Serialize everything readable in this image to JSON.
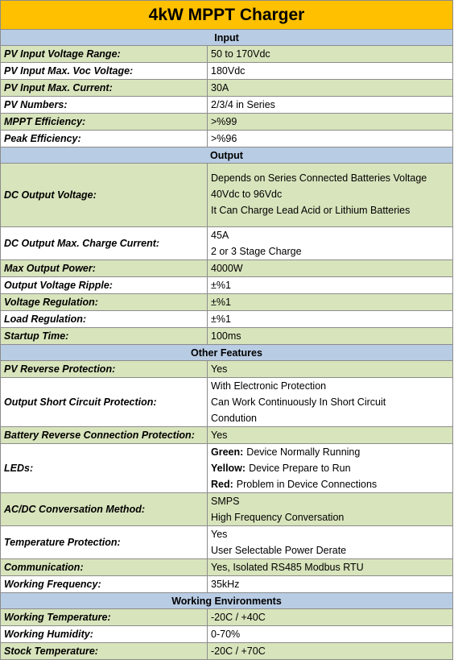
{
  "title": "4kW MPPT Charger",
  "sections": [
    {
      "heading": "Input",
      "rows": [
        {
          "label": "PV Input Voltage Range:",
          "lines": [
            "50 to 170Vdc"
          ]
        },
        {
          "label": "PV Input Max. Voc Voltage:",
          "lines": [
            "180Vdc"
          ]
        },
        {
          "label": "PV Input Max. Current:",
          "lines": [
            "30A"
          ]
        },
        {
          "label": "PV Numbers:",
          "lines": [
            "2/3/4 in Series"
          ]
        },
        {
          "label": "MPPT Efficiency:",
          "lines": [
            ">%99"
          ]
        },
        {
          "label": "Peak Efficiency:",
          "lines": [
            ">%96"
          ]
        }
      ]
    },
    {
      "heading": "Output",
      "rows": [
        {
          "label": "DC Output Voltage:",
          "lines": [
            "Depends on Series Connected Batteries Voltage",
            "40Vdc to 96Vdc",
            "It Can Charge Lead Acid or Lithium Batteries"
          ]
        },
        {
          "label": "DC Output Max. Charge Current:",
          "lines": [
            "45A",
            "2 or 3 Stage Charge"
          ]
        },
        {
          "label": "Max Output Power:",
          "lines": [
            "4000W"
          ]
        },
        {
          "label": "Output Voltage Ripple:",
          "lines": [
            "±%1"
          ]
        },
        {
          "label": "Voltage Regulation:",
          "lines": [
            "±%1"
          ]
        },
        {
          "label": "Load Regulation:",
          "lines": [
            "±%1"
          ]
        },
        {
          "label": "Startup Time:",
          "lines": [
            "100ms"
          ]
        }
      ]
    },
    {
      "heading": "Other Features",
      "rows": [
        {
          "label": "PV Reverse Protection:",
          "lines": [
            "Yes"
          ]
        },
        {
          "label": "Output Short Circuit Protection:",
          "lines": [
            "With Electronic Protection",
            "Can Work Continuously In Short Circuit",
            "Condution"
          ]
        },
        {
          "label": "Battery Reverse Connection Protection:",
          "lines": [
            "Yes"
          ]
        },
        {
          "label": "LEDs:",
          "lines": [
            {
              "strong": "Green:",
              "text": "Device Normally Running"
            },
            {
              "strong": "Yellow:",
              "text": "Device Prepare to Run"
            },
            {
              "strong": "Red:",
              "text": "Problem in Device Connections"
            }
          ]
        },
        {
          "label": "AC/DC Conversation Method:",
          "lines": [
            "SMPS",
            "High Frequency Conversation"
          ]
        },
        {
          "label": "Temperature Protection:",
          "lines": [
            "Yes",
            "User Selectable Power Derate"
          ]
        },
        {
          "label": "Communication:",
          "lines": [
            "Yes, Isolated RS485 Modbus RTU"
          ]
        },
        {
          "label": "Working Frequency:",
          "lines": [
            "35kHz"
          ]
        }
      ]
    },
    {
      "heading": "Working Environments",
      "rows": [
        {
          "label": "Working Temperature:",
          "lines": [
            "-20C / +40C"
          ]
        },
        {
          "label": "Working Humidity:",
          "lines": [
            "0-70%"
          ]
        },
        {
          "label": "Stock Temperature:",
          "lines": [
            "-20C / +70C"
          ]
        }
      ]
    }
  ]
}
